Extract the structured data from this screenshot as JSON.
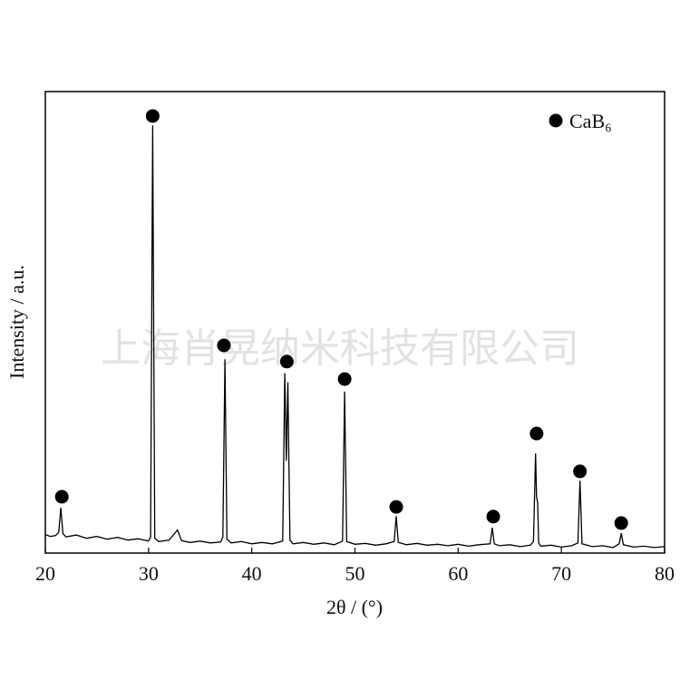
{
  "chart_data": {
    "type": "line",
    "watermark": "上海肖晃纳米科技有限公司",
    "x_label": "2θ / (°)",
    "y_label": "Intensity / a.u.",
    "xlim": [
      20,
      80
    ],
    "ylim": [
      0,
      100
    ],
    "xticks": [
      20,
      30,
      40,
      50,
      60,
      70,
      80
    ],
    "series": [
      {
        "color": "#000000",
        "x": [
          20,
          20.5,
          21,
          21.3,
          21.5,
          21.7,
          22,
          23,
          24,
          25,
          26,
          27,
          28,
          29,
          30,
          30.2,
          30.4,
          30.6,
          31,
          32,
          32.8,
          33.2,
          34,
          35,
          36,
          37,
          37.2,
          37.4,
          37.6,
          38,
          39,
          40,
          41,
          42,
          43,
          43.2,
          43.35,
          43.5,
          43.7,
          44,
          45,
          46,
          47,
          48,
          48.8,
          49,
          49.2,
          50,
          51,
          52,
          53,
          53.8,
          54,
          54.2,
          55,
          56,
          57,
          58,
          59,
          60,
          61,
          62,
          63.1,
          63.3,
          63.5,
          64,
          65,
          66,
          67,
          67.3,
          67.5,
          67.6,
          67.7,
          67.8,
          68,
          69,
          70,
          71,
          71.6,
          71.8,
          72,
          73,
          74,
          75,
          75.6,
          75.8,
          76,
          77,
          78,
          79,
          80
        ],
        "y": [
          4,
          3.6,
          3.8,
          4.5,
          9.8,
          4.2,
          3.5,
          3.9,
          3.2,
          3.6,
          3.0,
          3.4,
          2.8,
          3.1,
          2.6,
          3.5,
          92.7,
          3.2,
          2.5,
          2.8,
          5,
          2.7,
          2.3,
          2.6,
          2.2,
          2.4,
          3.5,
          42,
          3,
          2.2,
          2.5,
          2,
          2.3,
          2,
          2.6,
          39,
          20,
          37,
          2.8,
          2,
          2.3,
          1.9,
          2.2,
          1.8,
          2.6,
          35,
          2.5,
          1.9,
          2.1,
          1.7,
          2,
          2.5,
          8,
          2.3,
          1.8,
          2.1,
          1.7,
          1.9,
          1.6,
          1.9,
          1.5,
          1.8,
          2,
          5.5,
          2,
          1.6,
          1.8,
          1.4,
          1.7,
          2.5,
          21.6,
          12,
          11,
          2.2,
          1.5,
          1.7,
          1.3,
          1.6,
          2.2,
          15.7,
          2,
          1.4,
          1.6,
          1.2,
          2,
          4.3,
          1.8,
          1.3,
          1.5,
          1.2,
          1.4
        ]
      },
      {
        "name": "CaB₆",
        "color": "#000000",
        "marker": "circle",
        "x": [
          21.6,
          30.4,
          37.3,
          43.4,
          49.0,
          54.0,
          63.4,
          67.6,
          71.8,
          75.8
        ],
        "y": [
          12.2,
          94.7,
          45,
          41.5,
          37.7,
          10,
          7.9,
          25.9,
          17.7,
          6.5
        ]
      }
    ],
    "legend": "upper right"
  }
}
